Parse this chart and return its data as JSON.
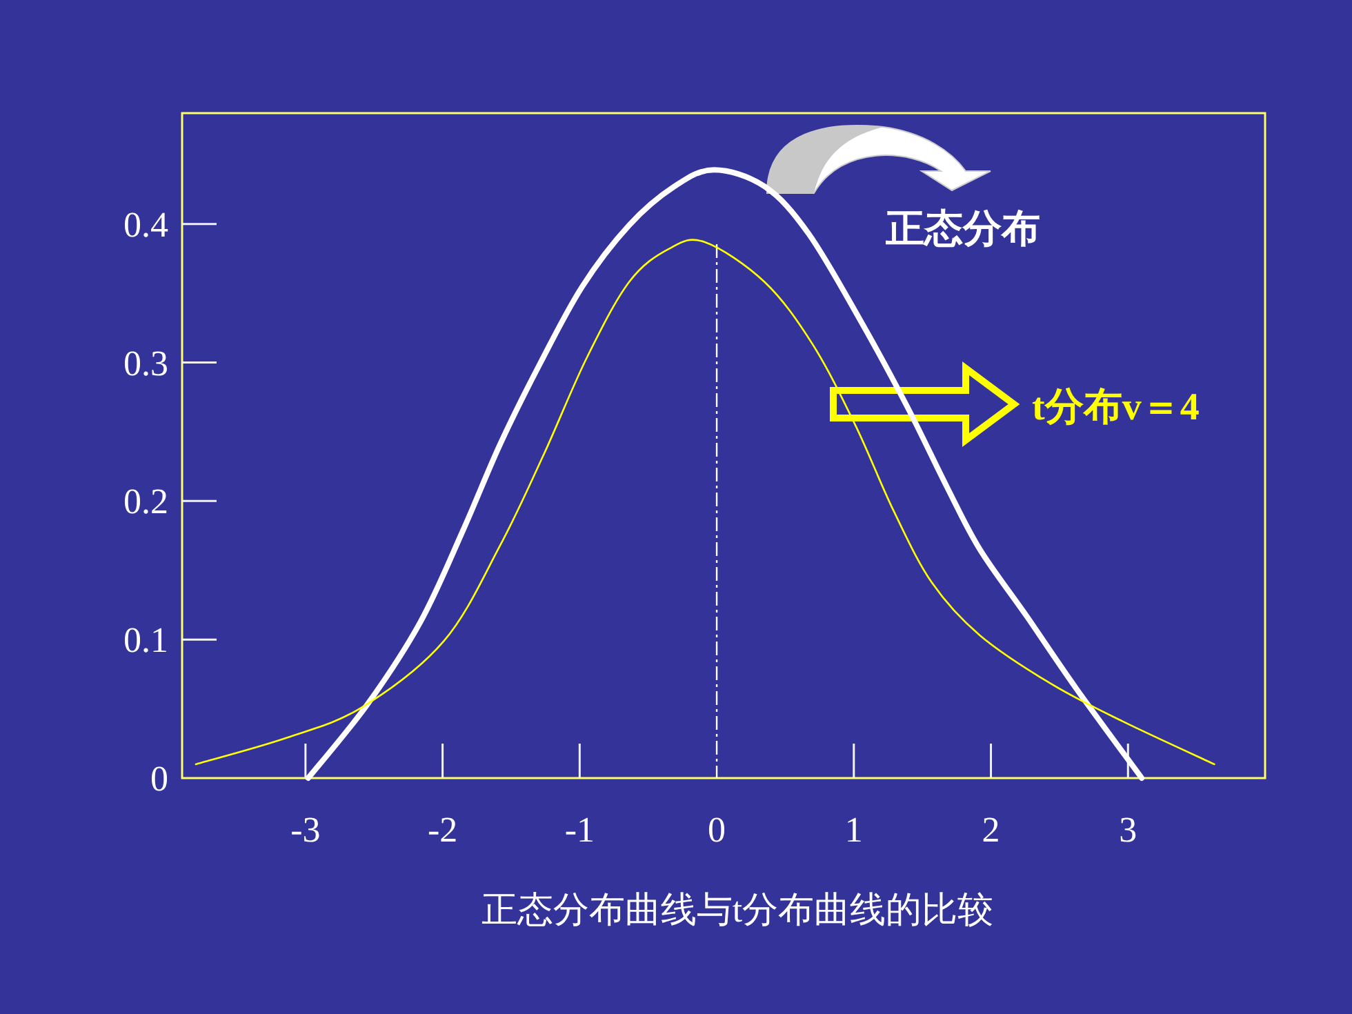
{
  "chart_data": {
    "type": "line",
    "xlabel": "正态分布曲线与t分布曲线的比较",
    "xlim": [
      -3.9,
      4
    ],
    "ylim": [
      0,
      0.48
    ],
    "xticks": [
      -3,
      -2,
      -1,
      0,
      1,
      2,
      3
    ],
    "yticks": [
      0,
      0.1,
      0.2,
      0.3,
      0.4
    ],
    "grid": false,
    "legend": "right",
    "marker": "none",
    "line_style": "solid",
    "ref_lines": [
      {
        "axis": "x",
        "value": 0,
        "color": "#ffffff",
        "line_style": "dashdot"
      }
    ],
    "series": [
      {
        "name": "正态分布",
        "color": "#ffffff",
        "x": [
          -2.98,
          -2.55,
          -2.16,
          -1.85,
          -1.58,
          -1.29,
          -0.98,
          -0.64,
          -0.31,
          -0.02,
          0.35,
          0.67,
          1.05,
          1.39,
          1.68,
          1.92,
          2.26,
          2.62,
          3.1
        ],
        "values": [
          0.0,
          0.053,
          0.113,
          0.179,
          0.241,
          0.299,
          0.355,
          0.399,
          0.427,
          0.439,
          0.427,
          0.393,
          0.33,
          0.268,
          0.21,
          0.165,
          0.117,
          0.065,
          0.0
        ]
      },
      {
        "name": "t分布v＝4",
        "color": "#ffff00",
        "x": [
          -3.8,
          -3.14,
          -2.59,
          -1.99,
          -1.58,
          -1.26,
          -0.95,
          -0.64,
          -0.35,
          -0.09,
          0.35,
          0.7,
          1.01,
          1.29,
          1.57,
          1.92,
          2.44,
          2.96,
          3.63
        ],
        "values": [
          0.01,
          0.029,
          0.051,
          0.099,
          0.168,
          0.234,
          0.303,
          0.358,
          0.382,
          0.387,
          0.358,
          0.313,
          0.255,
          0.193,
          0.141,
          0.103,
          0.068,
          0.041,
          0.01
        ]
      }
    ]
  }
}
